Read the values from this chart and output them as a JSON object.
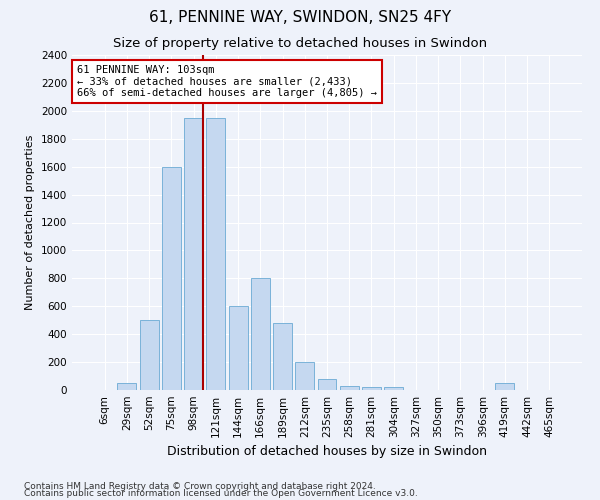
{
  "title1": "61, PENNINE WAY, SWINDON, SN25 4FY",
  "title2": "Size of property relative to detached houses in Swindon",
  "xlabel": "Distribution of detached houses by size in Swindon",
  "ylabel": "Number of detached properties",
  "categories": [
    "6sqm",
    "29sqm",
    "52sqm",
    "75sqm",
    "98sqm",
    "121sqm",
    "144sqm",
    "166sqm",
    "189sqm",
    "212sqm",
    "235sqm",
    "258sqm",
    "281sqm",
    "304sqm",
    "327sqm",
    "350sqm",
    "373sqm",
    "396sqm",
    "419sqm",
    "442sqm",
    "465sqm"
  ],
  "values": [
    0,
    50,
    500,
    1600,
    1950,
    1950,
    600,
    800,
    480,
    200,
    80,
    30,
    20,
    20,
    0,
    0,
    0,
    0,
    50,
    0,
    0
  ],
  "bar_color": "#c5d8f0",
  "bar_edge_color": "#6aaad4",
  "vline_color": "#aa0000",
  "vline_x_index": 4,
  "annotation_text": "61 PENNINE WAY: 103sqm\n← 33% of detached houses are smaller (2,433)\n66% of semi-detached houses are larger (4,805) →",
  "annotation_box_facecolor": "#ffffff",
  "annotation_box_edgecolor": "#cc0000",
  "ylim": [
    0,
    2400
  ],
  "yticks": [
    0,
    200,
    400,
    600,
    800,
    1000,
    1200,
    1400,
    1600,
    1800,
    2000,
    2200,
    2400
  ],
  "bg_color": "#eef2fa",
  "plot_bg_color": "#eef2fa",
  "title1_fontsize": 11,
  "title2_fontsize": 9.5,
  "xlabel_fontsize": 9,
  "ylabel_fontsize": 8,
  "tick_fontsize": 7.5,
  "annotation_fontsize": 7.5,
  "footer_fontsize": 6.5,
  "footer1": "Contains HM Land Registry data © Crown copyright and database right 2024.",
  "footer2": "Contains public sector information licensed under the Open Government Licence v3.0."
}
